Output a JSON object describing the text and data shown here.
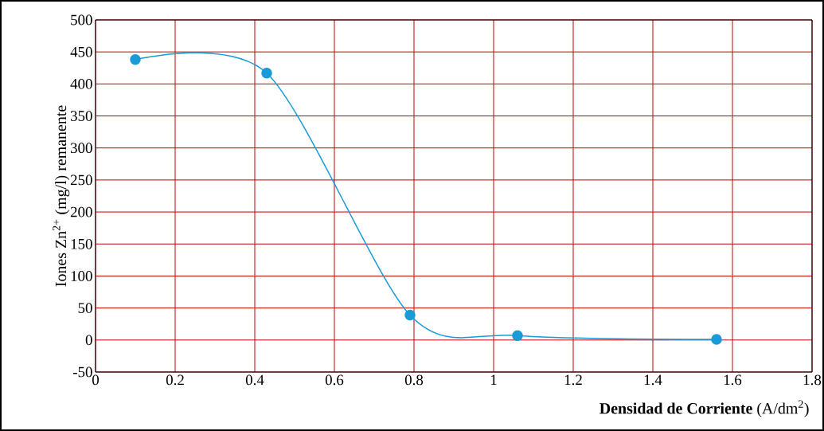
{
  "chart_data": {
    "type": "line",
    "xlabel": "**Densidad de Corriente** (A/dm$^{2}$)",
    "ylabel": "Iones Zn$^{2+}$ (mg/l) remanente",
    "x": [
      0.1,
      0.43,
      0.79,
      1.06,
      1.56
    ],
    "series": [
      {
        "color": "#1a9ad6",
        "values": [
          438,
          417,
          39,
          7,
          1
        ]
      }
    ],
    "xlim": [
      0,
      1.8
    ],
    "ylim": [
      -50,
      500
    ],
    "xticks": [
      0,
      0.2,
      0.4,
      0.6,
      0.8,
      1,
      1.2,
      1.4,
      1.6,
      1.8
    ],
    "yticks": [
      -50,
      0,
      50,
      100,
      150,
      200,
      250,
      300,
      350,
      400,
      450,
      500
    ],
    "grid": true,
    "marker": "circle",
    "line_style": "solid"
  }
}
